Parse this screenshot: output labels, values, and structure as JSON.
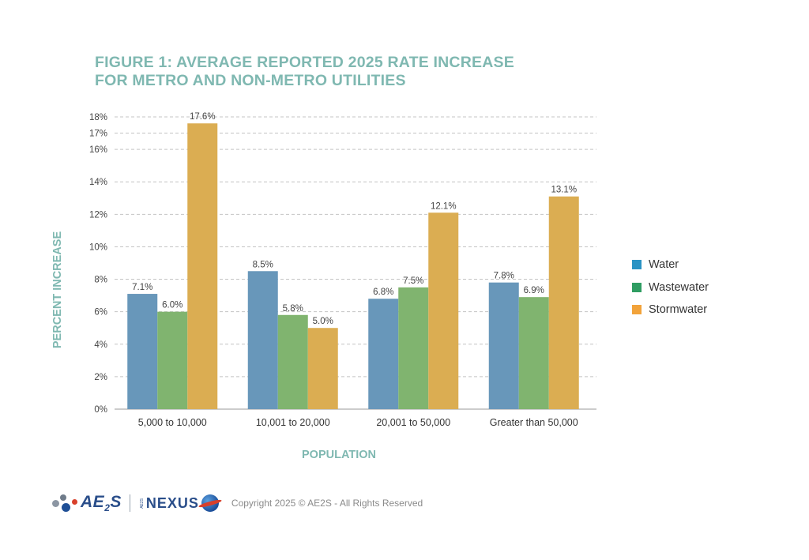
{
  "title_line1": "FIGURE 1: AVERAGE REPORTED 2025 RATE INCREASE",
  "title_line2": "FOR METRO AND NON-METRO UTILITIES",
  "chart_data": {
    "type": "bar",
    "title": "FIGURE 1: AVERAGE REPORTED 2025 RATE INCREASE FOR METRO AND NON-METRO UTILITIES",
    "xlabel": "POPULATION",
    "ylabel": "PERCENT INCREASE",
    "categories": [
      "5,000 to 10,000",
      "10,001 to 20,000",
      "20,001 to 50,000",
      "Greater than 50,000"
    ],
    "series": [
      {
        "name": "Water",
        "values": [
          7.1,
          8.5,
          6.8,
          7.8
        ],
        "labels": [
          "7.1%",
          "8.5%",
          "6.8%",
          "7.8%"
        ]
      },
      {
        "name": "Wastewater",
        "values": [
          6.0,
          5.8,
          7.5,
          6.9
        ],
        "labels": [
          "6.0%",
          "5.8%",
          "7.5%",
          "6.9%"
        ]
      },
      {
        "name": "Stormwater",
        "values": [
          17.6,
          5.0,
          12.1,
          13.1
        ],
        "labels": [
          "17.6%",
          "5.0%",
          "12.1%",
          "13.1%"
        ]
      }
    ],
    "yticks": [
      "0%",
      "2%",
      "4%",
      "6%",
      "8%",
      "10%",
      "12%",
      "14%",
      "16%",
      "17%",
      "18%"
    ],
    "ytick_values": [
      0,
      2,
      4,
      6,
      8,
      10,
      12,
      14,
      16,
      17,
      18
    ],
    "ylim": [
      0,
      18
    ],
    "grid": true,
    "legend_position": "right",
    "colors": {
      "bars": [
        "#6897ba",
        "#80b46f",
        "#dbad52"
      ],
      "legend": [
        "#2a93c4",
        "#2f9d62",
        "#f2a33a"
      ],
      "accent": "#7fb8b1"
    }
  },
  "footer": {
    "brand": "AE",
    "brand_sub": "2",
    "brand_tail": "S",
    "nexus_small": "AE2S",
    "nexus": "NEXUS",
    "copyright": "Copyright 2025 © AE2S - All Rights Reserved"
  }
}
